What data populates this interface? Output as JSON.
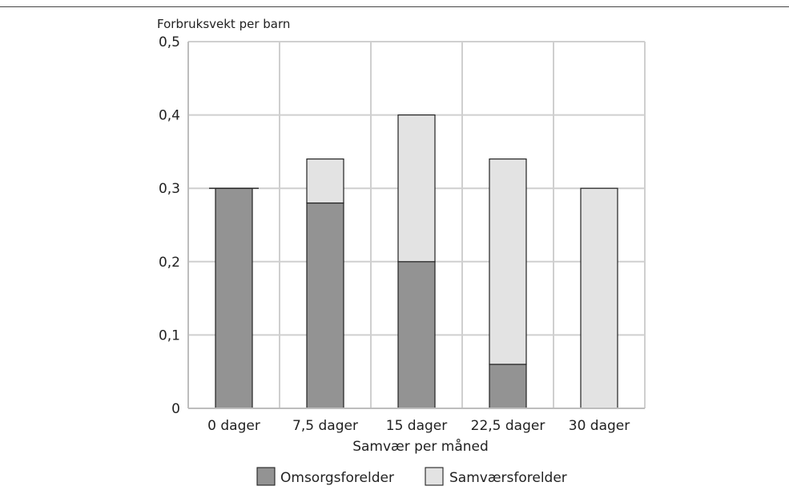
{
  "chart_data": {
    "type": "bar",
    "stacked": true,
    "ylabel": "Forbruksvekt per barn",
    "xlabel": "Samvær per måned",
    "categories": [
      "0 dager",
      "7,5 dager",
      "15 dager",
      "22,5 dager",
      "30 dager"
    ],
    "series": [
      {
        "name": "Omsorgsforelder",
        "values": [
          0.3,
          0.28,
          0.2,
          0.06,
          0.0
        ],
        "color": "#939393"
      },
      {
        "name": "Samværsforelder",
        "values": [
          0.0,
          0.06,
          0.2,
          0.28,
          0.3
        ],
        "color": "#e3e3e3"
      }
    ],
    "ylim": [
      0,
      0.5
    ],
    "yticks": [
      "0",
      "0,1",
      "0,2",
      "0,3",
      "0,4",
      "0,5"
    ],
    "grid": true,
    "legend_position": "bottom"
  }
}
